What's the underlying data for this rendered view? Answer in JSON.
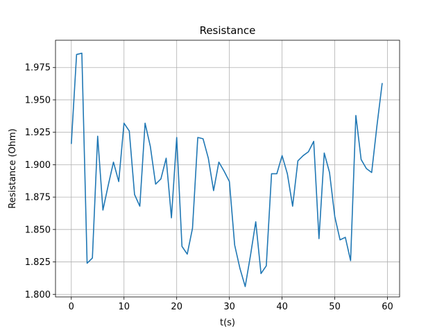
{
  "chart_data": {
    "type": "line",
    "title": "Resistance",
    "xlabel": "t(s)",
    "ylabel": "Resistance (Ohm)",
    "xlim": [
      -3,
      62.3
    ],
    "ylim": [
      1.798,
      1.996
    ],
    "xticks": [
      0,
      10,
      20,
      30,
      40,
      50,
      60
    ],
    "yticks": [
      1.8,
      1.825,
      1.85,
      1.875,
      1.9,
      1.925,
      1.95,
      1.975
    ],
    "xtick_labels": [
      "0",
      "10",
      "20",
      "30",
      "40",
      "50",
      "60"
    ],
    "ytick_labels": [
      "1.800",
      "1.825",
      "1.850",
      "1.875",
      "1.900",
      "1.925",
      "1.950",
      "1.975"
    ],
    "grid": true,
    "series": [
      {
        "color": "#1f77b4",
        "x": [
          0,
          1,
          2,
          3,
          4,
          5,
          6,
          7,
          8,
          9,
          10,
          11,
          12,
          13,
          14,
          15,
          16,
          17,
          18,
          19,
          20,
          21,
          22,
          23,
          24,
          25,
          26,
          27,
          28,
          29,
          30,
          31,
          32,
          33,
          34,
          35,
          36,
          37,
          38,
          39,
          40,
          41,
          42,
          43,
          44,
          45,
          46,
          47,
          48,
          49,
          50,
          51,
          52,
          53,
          54,
          55,
          56,
          57,
          58,
          59
        ],
        "y": [
          1.916,
          1.985,
          1.986,
          1.824,
          1.828,
          1.922,
          1.865,
          1.884,
          1.902,
          1.887,
          1.932,
          1.926,
          1.877,
          1.868,
          1.932,
          1.914,
          1.885,
          1.889,
          1.905,
          1.859,
          1.921,
          1.837,
          1.831,
          1.851,
          1.921,
          1.92,
          1.905,
          1.88,
          1.902,
          1.895,
          1.887,
          1.838,
          1.82,
          1.806,
          1.83,
          1.856,
          1.816,
          1.822,
          1.893,
          1.893,
          1.907,
          1.893,
          1.868,
          1.903,
          1.907,
          1.91,
          1.918,
          1.843,
          1.909,
          1.894,
          1.86,
          1.842,
          1.844,
          1.826,
          1.938,
          1.904,
          1.897,
          1.894,
          1.93,
          1.963
        ]
      }
    ]
  }
}
